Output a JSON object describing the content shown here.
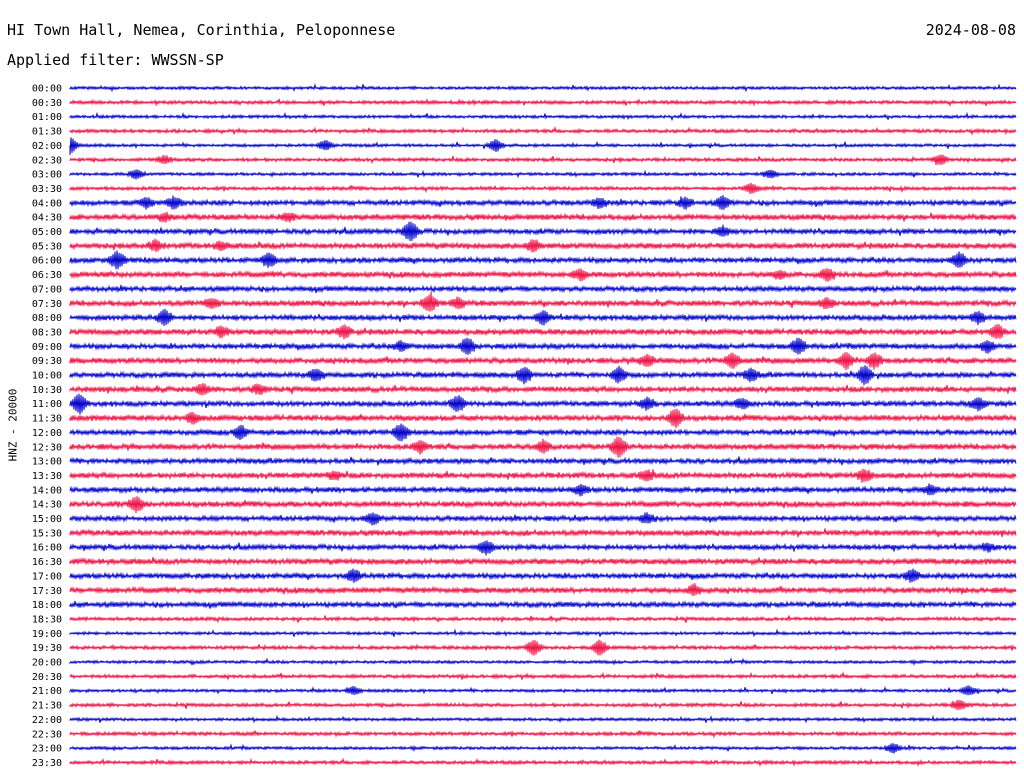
{
  "header": {
    "station": "HI Town Hall, Nemea, Corinthia, Peloponnese",
    "date": "2024-08-08",
    "filter": "Applied filter: WWSSN-SP"
  },
  "channel_label": "HNZ - 20000",
  "chart_data": {
    "type": "line",
    "chart_kind": "helicorder",
    "rows": [
      "00:00",
      "00:30",
      "01:00",
      "01:30",
      "02:00",
      "02:30",
      "03:00",
      "03:30",
      "04:00",
      "04:30",
      "05:00",
      "05:30",
      "06:00",
      "06:30",
      "07:00",
      "07:30",
      "08:00",
      "08:30",
      "09:00",
      "09:30",
      "10:00",
      "10:30",
      "11:00",
      "11:30",
      "12:00",
      "12:30",
      "13:00",
      "13:30",
      "14:00",
      "14:30",
      "15:00",
      "15:30",
      "16:00",
      "16:30",
      "17:00",
      "17:30",
      "18:00",
      "18:30",
      "19:00",
      "19:30",
      "20:00",
      "20:30",
      "21:00",
      "21:30",
      "22:00",
      "22:30",
      "23:00",
      "23:30"
    ],
    "colors": [
      "#0000cc",
      "#ee1144"
    ],
    "row_minutes": 30,
    "grid": false,
    "events": [
      {
        "row": "02:00",
        "t": 0.0,
        "amp": 0.9
      },
      {
        "row": "02:00",
        "t": 0.45,
        "amp": 0.6
      },
      {
        "row": "02:00",
        "t": 0.27,
        "amp": 0.5
      },
      {
        "row": "02:30",
        "t": 0.1,
        "amp": 0.4
      },
      {
        "row": "02:30",
        "t": 0.92,
        "amp": 0.5
      },
      {
        "row": "03:00",
        "t": 0.07,
        "amp": 0.5
      },
      {
        "row": "03:00",
        "t": 0.74,
        "amp": 0.4
      },
      {
        "row": "03:30",
        "t": 0.72,
        "amp": 0.5
      },
      {
        "row": "04:00",
        "t": 0.08,
        "amp": 0.5
      },
      {
        "row": "04:00",
        "t": 0.11,
        "amp": 0.6
      },
      {
        "row": "04:00",
        "t": 0.56,
        "amp": 0.5
      },
      {
        "row": "04:00",
        "t": 0.65,
        "amp": 0.5
      },
      {
        "row": "04:00",
        "t": 0.69,
        "amp": 0.6
      },
      {
        "row": "04:30",
        "t": 0.1,
        "amp": 0.4
      },
      {
        "row": "04:30",
        "t": 0.23,
        "amp": 0.4
      },
      {
        "row": "05:00",
        "t": 0.36,
        "amp": 1.0
      },
      {
        "row": "05:00",
        "t": 0.69,
        "amp": 0.5
      },
      {
        "row": "05:30",
        "t": 0.09,
        "amp": 0.5
      },
      {
        "row": "05:30",
        "t": 0.16,
        "amp": 0.4
      },
      {
        "row": "05:30",
        "t": 0.49,
        "amp": 0.6
      },
      {
        "row": "06:00",
        "t": 0.05,
        "amp": 0.9
      },
      {
        "row": "06:00",
        "t": 0.21,
        "amp": 0.7
      },
      {
        "row": "06:00",
        "t": 0.94,
        "amp": 0.8
      },
      {
        "row": "06:30",
        "t": 0.54,
        "amp": 0.5
      },
      {
        "row": "06:30",
        "t": 0.75,
        "amp": 0.4
      },
      {
        "row": "06:30",
        "t": 0.8,
        "amp": 0.6
      },
      {
        "row": "07:30",
        "t": 0.15,
        "amp": 0.5
      },
      {
        "row": "07:30",
        "t": 0.38,
        "amp": 0.9
      },
      {
        "row": "07:30",
        "t": 0.41,
        "amp": 0.5
      },
      {
        "row": "07:30",
        "t": 0.8,
        "amp": 0.5
      },
      {
        "row": "08:00",
        "t": 0.1,
        "amp": 0.8
      },
      {
        "row": "08:00",
        "t": 0.5,
        "amp": 0.7
      },
      {
        "row": "08:00",
        "t": 0.96,
        "amp": 0.6
      },
      {
        "row": "08:30",
        "t": 0.16,
        "amp": 0.5
      },
      {
        "row": "08:30",
        "t": 0.29,
        "amp": 0.6
      },
      {
        "row": "08:30",
        "t": 0.98,
        "amp": 0.7
      },
      {
        "row": "09:00",
        "t": 0.42,
        "amp": 0.9
      },
      {
        "row": "09:00",
        "t": 0.35,
        "amp": 0.5
      },
      {
        "row": "09:00",
        "t": 0.77,
        "amp": 0.8
      },
      {
        "row": "09:00",
        "t": 0.97,
        "amp": 0.6
      },
      {
        "row": "09:30",
        "t": 0.61,
        "amp": 0.6
      },
      {
        "row": "09:30",
        "t": 0.7,
        "amp": 0.8
      },
      {
        "row": "09:30",
        "t": 0.82,
        "amp": 0.8
      },
      {
        "row": "09:30",
        "t": 0.85,
        "amp": 0.8
      },
      {
        "row": "10:00",
        "t": 0.26,
        "amp": 0.6
      },
      {
        "row": "10:00",
        "t": 0.48,
        "amp": 0.8
      },
      {
        "row": "10:00",
        "t": 0.58,
        "amp": 0.8
      },
      {
        "row": "10:00",
        "t": 0.72,
        "amp": 0.6
      },
      {
        "row": "10:00",
        "t": 0.84,
        "amp": 1.0
      },
      {
        "row": "10:30",
        "t": 0.14,
        "amp": 0.5
      },
      {
        "row": "10:30",
        "t": 0.2,
        "amp": 0.5
      },
      {
        "row": "11:00",
        "t": 0.01,
        "amp": 1.0
      },
      {
        "row": "11:00",
        "t": 0.41,
        "amp": 0.8
      },
      {
        "row": "11:00",
        "t": 0.61,
        "amp": 0.6
      },
      {
        "row": "11:00",
        "t": 0.71,
        "amp": 0.5
      },
      {
        "row": "11:00",
        "t": 0.96,
        "amp": 0.6
      },
      {
        "row": "11:30",
        "t": 0.13,
        "amp": 0.5
      },
      {
        "row": "11:30",
        "t": 0.64,
        "amp": 0.9
      },
      {
        "row": "12:00",
        "t": 0.18,
        "amp": 0.7
      },
      {
        "row": "12:00",
        "t": 0.35,
        "amp": 0.9
      },
      {
        "row": "12:30",
        "t": 0.37,
        "amp": 0.6
      },
      {
        "row": "12:30",
        "t": 0.5,
        "amp": 0.6
      },
      {
        "row": "12:30",
        "t": 0.58,
        "amp": 1.0
      },
      {
        "row": "13:30",
        "t": 0.28,
        "amp": 0.4
      },
      {
        "row": "13:30",
        "t": 0.61,
        "amp": 0.5
      },
      {
        "row": "13:30",
        "t": 0.84,
        "amp": 0.6
      },
      {
        "row": "14:00",
        "t": 0.54,
        "amp": 0.5
      },
      {
        "row": "14:00",
        "t": 0.91,
        "amp": 0.5
      },
      {
        "row": "14:30",
        "t": 0.07,
        "amp": 0.8
      },
      {
        "row": "15:00",
        "t": 0.32,
        "amp": 0.6
      },
      {
        "row": "15:00",
        "t": 0.61,
        "amp": 0.5
      },
      {
        "row": "16:00",
        "t": 0.44,
        "amp": 0.7
      },
      {
        "row": "16:00",
        "t": 0.97,
        "amp": 0.4
      },
      {
        "row": "17:00",
        "t": 0.3,
        "amp": 0.6
      },
      {
        "row": "17:00",
        "t": 0.89,
        "amp": 0.6
      },
      {
        "row": "17:30",
        "t": 0.66,
        "amp": 0.5
      },
      {
        "row": "19:30",
        "t": 0.49,
        "amp": 0.8
      },
      {
        "row": "19:30",
        "t": 0.56,
        "amp": 0.8
      },
      {
        "row": "21:00",
        "t": 0.3,
        "amp": 0.4
      },
      {
        "row": "21:00",
        "t": 0.95,
        "amp": 0.5
      },
      {
        "row": "21:30",
        "t": 0.94,
        "amp": 0.5
      },
      {
        "row": "23:00",
        "t": 0.87,
        "amp": 0.5
      }
    ]
  }
}
